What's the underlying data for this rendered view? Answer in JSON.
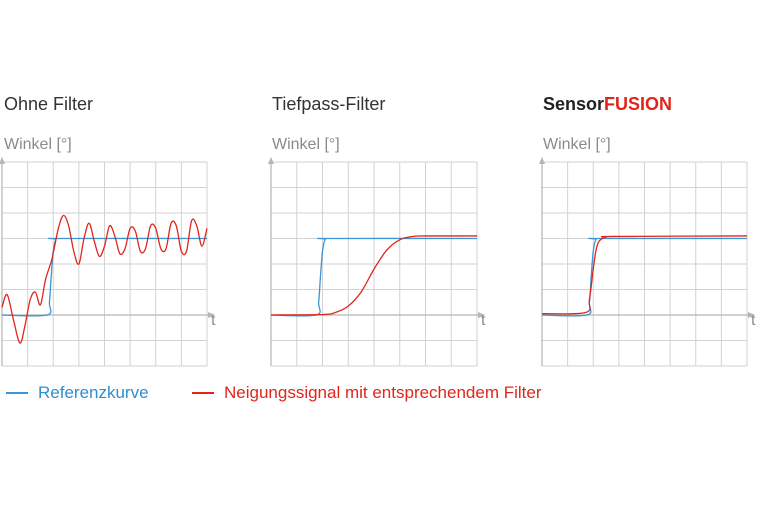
{
  "colors": {
    "reference": "#3a95d6",
    "signal": "#e0251b",
    "grid": "#d2d2d2",
    "axis": "#b5b5b5",
    "accent": "#e0251b"
  },
  "legend": [
    {
      "label": "Referenzkurve",
      "color": "#3a95d6"
    },
    {
      "label": "Neigungssignal mit entsprechendem Filter",
      "color": "#e0251b"
    }
  ],
  "chart_data": [
    {
      "type": "line",
      "title": "Ohne Filter",
      "ylabel": "Winkel [°]",
      "xlabel": "t",
      "grid": true,
      "xlim": [
        0,
        8
      ],
      "ylim": [
        -2,
        6
      ],
      "series": [
        {
          "color": "#3a95d6",
          "x": [
            0,
            1.75,
            1.85,
            1.92,
            2.0,
            2.1,
            2.3,
            8
          ],
          "y": [
            0,
            0,
            0.5,
            1.5,
            2.5,
            2.95,
            3,
            3
          ]
        },
        {
          "color": "#e0251b",
          "x": [
            0,
            0.2,
            0.45,
            0.7,
            0.9,
            1.1,
            1.3,
            1.5,
            1.7,
            1.95,
            2.2,
            2.4,
            2.6,
            2.8,
            3.0,
            3.2,
            3.4,
            3.6,
            3.8,
            4.0,
            4.2,
            4.4,
            4.6,
            4.8,
            5.0,
            5.2,
            5.4,
            5.6,
            5.8,
            6.0,
            6.2,
            6.4,
            6.6,
            6.8,
            7.0,
            7.2,
            7.4,
            7.6,
            7.8,
            8.0
          ],
          "y": [
            0.3,
            0.8,
            -0.2,
            -1.1,
            -0.4,
            0.6,
            0.9,
            0.4,
            1.4,
            2.2,
            3.4,
            3.9,
            3.5,
            2.5,
            2.0,
            3.0,
            3.6,
            2.9,
            2.3,
            2.7,
            3.5,
            3.1,
            2.4,
            2.6,
            3.4,
            3.3,
            2.5,
            2.6,
            3.5,
            3.4,
            2.6,
            2.6,
            3.6,
            3.5,
            2.5,
            2.5,
            3.7,
            3.5,
            2.7,
            3.4
          ]
        }
      ]
    },
    {
      "type": "line",
      "title": "Tiefpass-Filter",
      "ylabel": "Winkel [°]",
      "xlabel": "t",
      "grid": true,
      "xlim": [
        0,
        8
      ],
      "ylim": [
        -2,
        6
      ],
      "series": [
        {
          "color": "#3a95d6",
          "x": [
            0,
            1.75,
            1.85,
            1.92,
            2.0,
            2.1,
            2.3,
            8
          ],
          "y": [
            0,
            0,
            0.5,
            1.5,
            2.5,
            2.95,
            3,
            3
          ]
        },
        {
          "color": "#e0251b",
          "x": [
            0,
            2.0,
            2.5,
            3.0,
            3.5,
            4.0,
            4.5,
            5.0,
            5.5,
            6.0,
            8.0
          ],
          "y": [
            0,
            0.02,
            0.1,
            0.35,
            0.9,
            1.8,
            2.55,
            2.95,
            3.08,
            3.1,
            3.1
          ]
        }
      ]
    },
    {
      "type": "line",
      "title": "SensorFUSION",
      "ylabel": "Winkel [°]",
      "xlabel": "t",
      "grid": true,
      "xlim": [
        0,
        8
      ],
      "ylim": [
        -2,
        6
      ],
      "series": [
        {
          "color": "#3a95d6",
          "x": [
            0,
            1.75,
            1.85,
            1.92,
            2.0,
            2.1,
            2.3,
            8
          ],
          "y": [
            0,
            0,
            0.5,
            1.5,
            2.5,
            2.95,
            3,
            3
          ]
        },
        {
          "color": "#e0251b",
          "x": [
            0,
            1.7,
            1.85,
            2.0,
            2.1,
            2.2,
            2.35,
            2.5,
            2.8,
            8.0
          ],
          "y": [
            0.05,
            0.1,
            0.6,
            1.8,
            2.5,
            2.85,
            3.0,
            3.05,
            3.08,
            3.1
          ]
        }
      ]
    }
  ],
  "title_parts": {
    "sensor": "Sensor",
    "fusion": "FUSION"
  }
}
